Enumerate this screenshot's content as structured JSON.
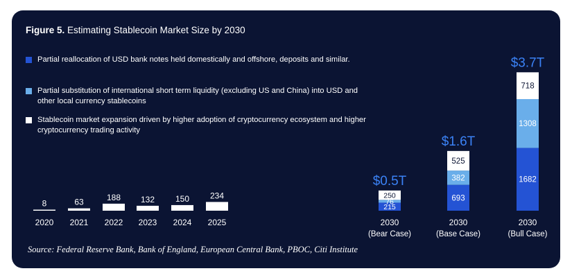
{
  "figure_label": "Figure 5.",
  "figure_title": "Estimating Stablecoin Market Size by 2030",
  "source": "Source: Federal Reserve Bank, Bank of England, European Central Bank, PBOC, Citi Institute",
  "colors": {
    "background": "#0b1433",
    "historical": "#ffffff",
    "usd_reallocation": "#2453d4",
    "liquidity_substitution": "#6aaeea",
    "market_expansion": "#ffffff",
    "totals": "#3b82f6"
  },
  "chart_data": {
    "type": "bar",
    "title": "Estimating Stablecoin Market Size by 2030",
    "historical": {
      "categories": [
        "2020",
        "2021",
        "2022",
        "2023",
        "2024",
        "2025"
      ],
      "values": [
        8,
        63,
        188,
        132,
        150,
        234
      ]
    },
    "scenarios": {
      "categories": [
        {
          "year": "2030",
          "case": "(Bear Case)"
        },
        {
          "year": "2030",
          "case": "(Base Case)"
        },
        {
          "year": "2030",
          "case": "(Bull Case)"
        }
      ],
      "totals": [
        "$0.5T",
        "$1.6T",
        "$3.7T"
      ],
      "series": [
        {
          "name": "Partial reallocation of USD bank notes held domestically and offshore, deposits and similar.",
          "values": [
            215,
            693,
            1682
          ]
        },
        {
          "name": "Partial substitution of international short term liquidity (excluding US and China) into USD and other local currency stablecoins",
          "values": [
            76,
            382,
            1308
          ]
        },
        {
          "name": "Stablecoin market expansion driven by higher adoption of cryptocurrency ecosystem and higher cryptocurrency trading activity",
          "values": [
            250,
            525,
            718
          ]
        }
      ]
    },
    "legend_position": "top-left",
    "grid": false
  }
}
